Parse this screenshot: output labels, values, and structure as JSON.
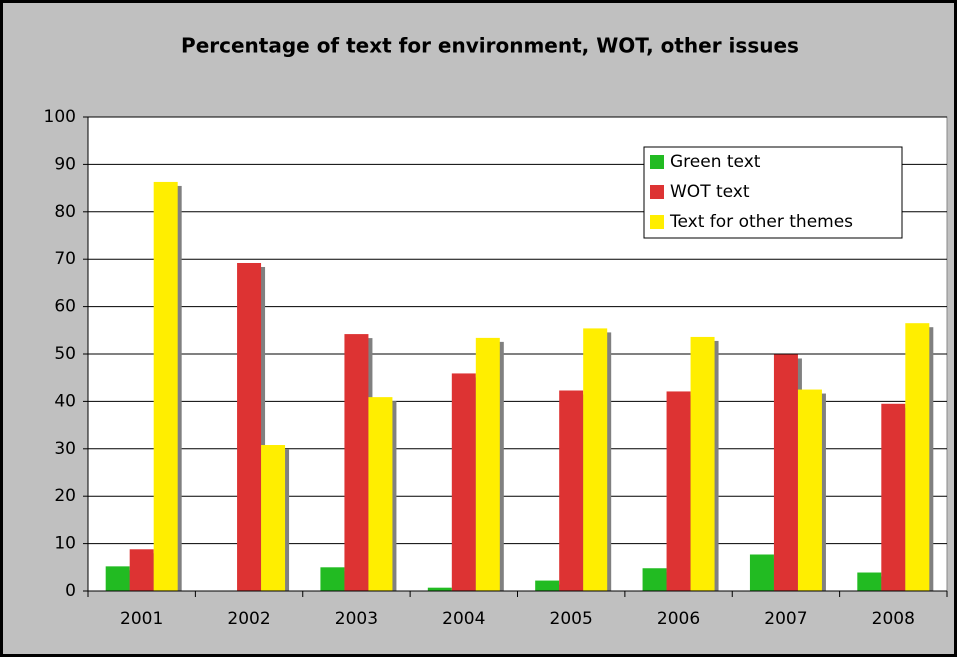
{
  "chart_data": {
    "type": "bar",
    "title": "Percentage of text for environment, WOT, other issues",
    "categories": [
      "2001",
      "2002",
      "2003",
      "2004",
      "2005",
      "2006",
      "2007",
      "2008"
    ],
    "series": [
      {
        "name": "Green text",
        "color": "#22bb22",
        "values": [
          5.2,
          0,
          5,
          0.7,
          2.2,
          4.8,
          7.7,
          3.9
        ]
      },
      {
        "name": "WOT text",
        "color": "#dd3333",
        "values": [
          8.8,
          69.2,
          54.2,
          45.9,
          42.3,
          42.1,
          49.9,
          39.5
        ]
      },
      {
        "name": "Text for other themes",
        "color": "#ffee00",
        "values": [
          86.3,
          30.8,
          40.9,
          53.4,
          55.4,
          53.6,
          42.5,
          56.5
        ]
      }
    ],
    "ylim": [
      0,
      100
    ],
    "yticks": [
      0,
      10,
      20,
      30,
      40,
      50,
      60,
      70,
      80,
      90,
      100
    ],
    "grid": true,
    "legend": "top-right"
  }
}
